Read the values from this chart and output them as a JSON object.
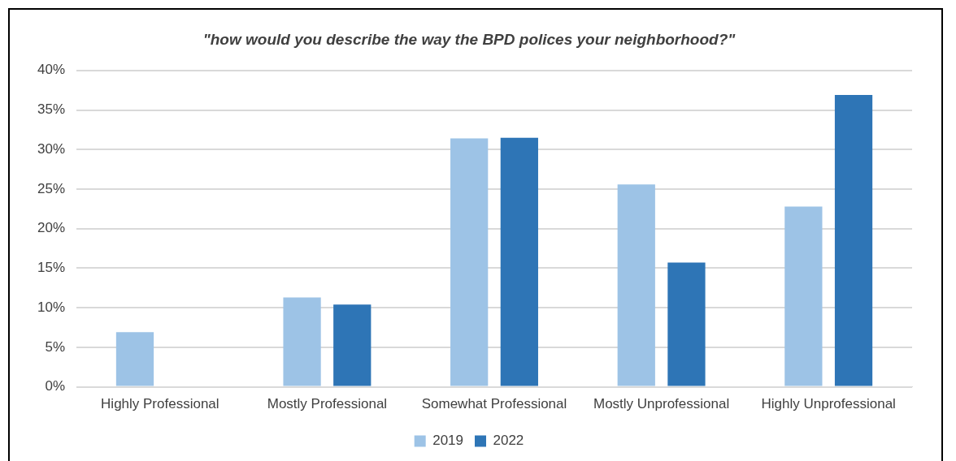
{
  "chart_data": {
    "type": "bar",
    "title": "\"how would you describe the way the BPD polices your neighborhood?\"",
    "categories": [
      "Highly Professional",
      "Mostly Professional",
      "Somewhat Professional",
      "Mostly Unprofessional",
      "Highly Unprofessional"
    ],
    "series": [
      {
        "name": "2019",
        "color": "#9dc3e6",
        "values": [
          6.9,
          11.3,
          31.4,
          25.6,
          22.8
        ]
      },
      {
        "name": "2022",
        "color": "#2e75b6",
        "values": [
          0,
          10.4,
          31.5,
          15.7,
          36.9
        ]
      }
    ],
    "ylim": [
      0,
      40
    ],
    "yticks": [
      {
        "value": 0,
        "label": "0%"
      },
      {
        "value": 5,
        "label": "5%"
      },
      {
        "value": 10,
        "label": "10%"
      },
      {
        "value": 15,
        "label": "15%"
      },
      {
        "value": 20,
        "label": "20%"
      },
      {
        "value": 25,
        "label": "25%"
      },
      {
        "value": 30,
        "label": "30%"
      },
      {
        "value": 35,
        "label": "35%"
      },
      {
        "value": 40,
        "label": "40%"
      }
    ],
    "grid": "y",
    "legend": "bottom"
  }
}
